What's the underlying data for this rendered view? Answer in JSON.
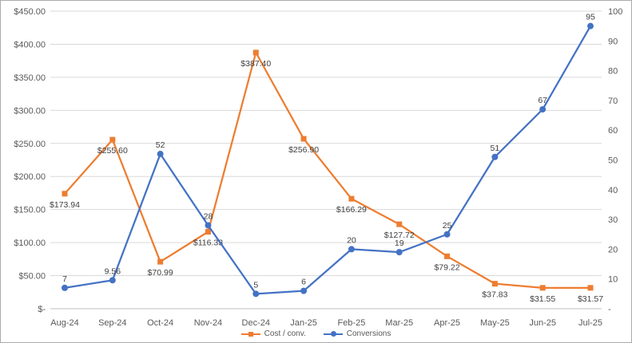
{
  "chart_data": {
    "type": "line",
    "title": "",
    "categories": [
      "Aug-24",
      "Sep-24",
      "Oct-24",
      "Nov-24",
      "Dec-24",
      "Jan-25",
      "Feb-25",
      "Mar-25",
      "Apr-25",
      "May-25",
      "Jun-25",
      "Jul-25"
    ],
    "series": [
      {
        "name": "Cost / conv.",
        "color": "#ED7D31",
        "marker": "square",
        "axis": "left",
        "label_position": "below",
        "values": [
          173.94,
          255.6,
          70.99,
          116.33,
          387.4,
          256.9,
          166.29,
          127.72,
          79.22,
          37.83,
          31.55,
          31.57
        ],
        "labels": [
          "$173.94",
          "$255.60",
          "$70.99",
          "$116.33",
          "$387.40",
          "$256.90",
          "$166.29",
          "$127.72",
          "$79.22",
          "$37.83",
          "$31.55",
          "$31.57"
        ]
      },
      {
        "name": "Conversions",
        "color": "#4472C4",
        "marker": "circle",
        "axis": "right",
        "label_position": "above",
        "values": [
          7,
          9.56,
          52,
          28,
          5,
          6,
          20,
          19,
          25,
          51,
          67,
          95
        ],
        "labels": [
          "7",
          "9.56",
          "52",
          "28",
          "5",
          "6",
          "20",
          "19",
          "25",
          "51",
          "67",
          "95"
        ]
      }
    ],
    "left_axis": {
      "min": 0,
      "max": 450,
      "step": 50,
      "labels": [
        "$-",
        "$50.00",
        "$100.00",
        "$150.00",
        "$200.00",
        "$250.00",
        "$300.00",
        "$350.00",
        "$400.00",
        "$450.00"
      ]
    },
    "right_axis": {
      "min": 0,
      "max": 100,
      "step": 10,
      "labels": [
        "-",
        "10",
        "20",
        "30",
        "40",
        "50",
        "60",
        "70",
        "80",
        "90",
        "100"
      ]
    },
    "grid": true,
    "legend_position": "bottom",
    "colors": {
      "gridline": "#D9D9D9",
      "axis_line": "#BFBFBF",
      "axis_text": "#595959",
      "data_label_text": "#404040"
    }
  }
}
